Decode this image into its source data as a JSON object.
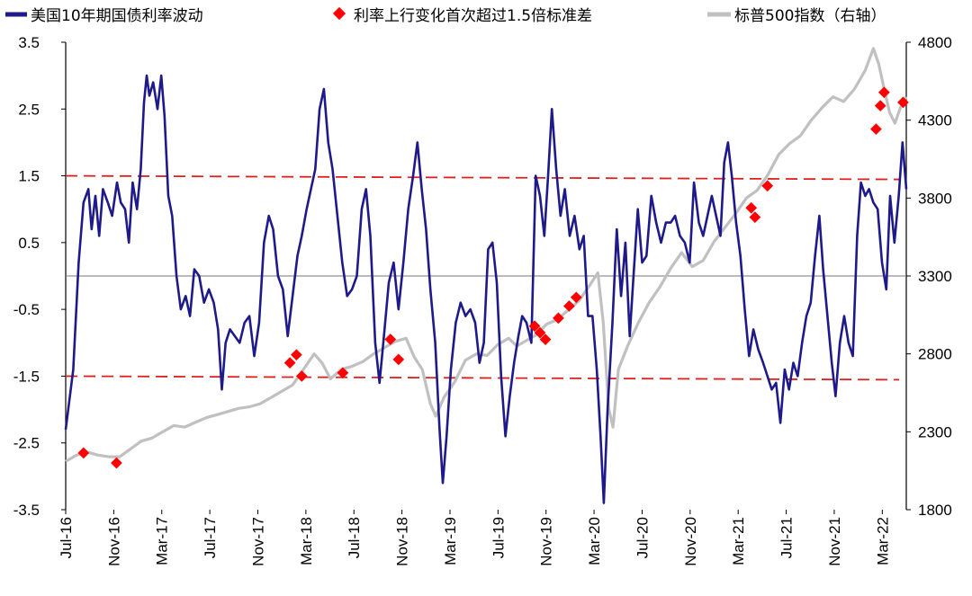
{
  "chart_data": {
    "type": "line",
    "title": "",
    "legend_position": "top",
    "grid": false,
    "x": {
      "ticks": [
        "Jul-16",
        "Nov-16",
        "Mar-17",
        "Jul-17",
        "Nov-17",
        "Mar-18",
        "Jul-18",
        "Nov-18",
        "Mar-19",
        "Jul-19",
        "Nov-19",
        "Mar-20",
        "Jul-20",
        "Nov-20",
        "Mar-21",
        "Jul-21",
        "Nov-21",
        "Mar-22"
      ]
    },
    "y_left": {
      "range": [
        -3.5,
        3.5
      ],
      "ticks": [
        "3.5",
        "2.5",
        "1.5",
        "0.5",
        "-0.5",
        "-1.5",
        "-2.5",
        "-3.5"
      ],
      "reference_lines": [
        1.5,
        -1.5,
        0
      ]
    },
    "y_right": {
      "range": [
        1800,
        4800
      ],
      "ticks": [
        "4800",
        "4300",
        "3800",
        "3300",
        "2800",
        "2300",
        "1800"
      ]
    },
    "colors": {
      "rate": "#1f1a8a",
      "spx": "#c0c0c0",
      "marker": "#ff0000",
      "ref": "#e0201a"
    },
    "series": [
      {
        "name": "美国10年期国债利率波动",
        "axis": "left",
        "style": "line",
        "points": [
          [
            0,
            -2.3
          ],
          [
            1.4,
            -1.4
          ],
          [
            2.4,
            0.2
          ],
          [
            3.3,
            1.1
          ],
          [
            4.2,
            1.3
          ],
          [
            4.8,
            0.7
          ],
          [
            5.5,
            1.2
          ],
          [
            6.2,
            0.6
          ],
          [
            6.9,
            1.3
          ],
          [
            7.8,
            1.1
          ],
          [
            8.6,
            0.9
          ],
          [
            9.5,
            1.4
          ],
          [
            10.2,
            1.1
          ],
          [
            11.0,
            1.0
          ],
          [
            11.7,
            0.5
          ],
          [
            12.4,
            1.4
          ],
          [
            13.2,
            1.0
          ],
          [
            13.9,
            1.6
          ],
          [
            14.5,
            2.6
          ],
          [
            15.0,
            3.0
          ],
          [
            15.5,
            2.7
          ],
          [
            16.2,
            2.9
          ],
          [
            17.0,
            2.5
          ],
          [
            17.7,
            3.0
          ],
          [
            18.3,
            2.4
          ],
          [
            19.0,
            1.2
          ],
          [
            19.7,
            0.9
          ],
          [
            20.5,
            0.0
          ],
          [
            21.3,
            -0.5
          ],
          [
            22.2,
            -0.3
          ],
          [
            23.0,
            -0.6
          ],
          [
            23.8,
            0.1
          ],
          [
            24.7,
            0.0
          ],
          [
            25.6,
            -0.4
          ],
          [
            26.5,
            -0.2
          ],
          [
            27.4,
            -0.4
          ],
          [
            28.2,
            -0.8
          ],
          [
            28.9,
            -1.7
          ],
          [
            29.6,
            -1.0
          ],
          [
            30.4,
            -0.8
          ],
          [
            31.3,
            -0.9
          ],
          [
            32.2,
            -1.0
          ],
          [
            33.1,
            -0.7
          ],
          [
            34.0,
            -0.6
          ],
          [
            34.9,
            -1.2
          ],
          [
            35.8,
            -0.7
          ],
          [
            36.7,
            0.5
          ],
          [
            37.6,
            0.9
          ],
          [
            38.4,
            0.7
          ],
          [
            39.3,
            0.0
          ],
          [
            40.2,
            -0.2
          ],
          [
            41.1,
            -0.9
          ],
          [
            42.0,
            -0.3
          ],
          [
            42.9,
            0.3
          ],
          [
            43.7,
            0.6
          ],
          [
            44.6,
            1.0
          ],
          [
            45.4,
            1.3
          ],
          [
            46.2,
            1.6
          ],
          [
            47.0,
            2.5
          ],
          [
            47.8,
            2.8
          ],
          [
            48.6,
            2.0
          ],
          [
            49.4,
            1.6
          ],
          [
            50.3,
            0.9
          ],
          [
            51.2,
            0.2
          ],
          [
            52.1,
            -0.3
          ],
          [
            53.0,
            -0.2
          ],
          [
            53.9,
            0.0
          ],
          [
            54.8,
            1.0
          ],
          [
            55.6,
            1.3
          ],
          [
            56.4,
            0.6
          ],
          [
            57.3,
            -1.0
          ],
          [
            58.1,
            -1.6
          ],
          [
            58.9,
            -0.9
          ],
          [
            59.8,
            -0.1
          ],
          [
            60.7,
            0.2
          ],
          [
            61.6,
            -0.5
          ],
          [
            62.5,
            0.2
          ],
          [
            63.4,
            1.0
          ],
          [
            64.3,
            1.5
          ],
          [
            65.1,
            2.0
          ],
          [
            65.9,
            1.3
          ],
          [
            66.7,
            0.7
          ],
          [
            67.5,
            -0.2
          ],
          [
            68.4,
            -1.0
          ],
          [
            69.2,
            -2.3
          ],
          [
            69.8,
            -3.1
          ],
          [
            70.5,
            -2.4
          ],
          [
            71.3,
            -1.4
          ],
          [
            72.2,
            -0.7
          ],
          [
            73.1,
            -0.4
          ],
          [
            74.0,
            -0.6
          ],
          [
            74.9,
            -0.5
          ],
          [
            75.8,
            -0.7
          ],
          [
            76.6,
            -1.3
          ],
          [
            77.4,
            -1.0
          ],
          [
            78.2,
            0.4
          ],
          [
            79.0,
            0.5
          ],
          [
            79.8,
            -0.1
          ],
          [
            80.6,
            -1.5
          ],
          [
            81.4,
            -2.4
          ],
          [
            82.2,
            -1.8
          ],
          [
            83.0,
            -1.3
          ],
          [
            83.8,
            -0.9
          ],
          [
            84.5,
            -0.6
          ],
          [
            85.3,
            -0.7
          ],
          [
            86.2,
            -1.0
          ],
          [
            87.0,
            1.5
          ],
          [
            87.8,
            1.2
          ],
          [
            88.6,
            0.6
          ],
          [
            89.3,
            1.5
          ],
          [
            90.0,
            2.5
          ],
          [
            90.8,
            1.6
          ],
          [
            91.6,
            0.9
          ],
          [
            92.4,
            1.3
          ],
          [
            93.3,
            0.6
          ],
          [
            94.2,
            0.9
          ],
          [
            95.1,
            0.4
          ],
          [
            95.9,
            0.6
          ],
          [
            96.7,
            -0.6
          ],
          [
            97.5,
            -0.6
          ],
          [
            98.3,
            -1.4
          ],
          [
            99.0,
            -2.4
          ],
          [
            99.6,
            -3.4
          ],
          [
            100.3,
            -2.0
          ],
          [
            101.2,
            -0.7
          ],
          [
            102.0,
            0.7
          ],
          [
            102.8,
            -0.3
          ],
          [
            103.6,
            0.5
          ],
          [
            104.4,
            -0.9
          ],
          [
            105.1,
            0.0
          ],
          [
            105.9,
            1.0
          ],
          [
            106.7,
            0.2
          ],
          [
            107.5,
            0.3
          ],
          [
            108.4,
            1.2
          ],
          [
            109.3,
            0.8
          ],
          [
            110.2,
            0.5
          ],
          [
            111.1,
            0.8
          ],
          [
            112.0,
            0.8
          ],
          [
            112.8,
            0.9
          ],
          [
            113.7,
            0.6
          ],
          [
            114.6,
            0.5
          ],
          [
            115.5,
            0.2
          ],
          [
            116.3,
            1.4
          ],
          [
            117.2,
            0.8
          ],
          [
            118.0,
            0.6
          ],
          [
            118.8,
            0.9
          ],
          [
            119.6,
            1.2
          ],
          [
            120.4,
            0.9
          ],
          [
            121.2,
            0.6
          ],
          [
            121.9,
            1.7
          ],
          [
            122.6,
            2.0
          ],
          [
            123.3,
            1.5
          ],
          [
            124.1,
            0.8
          ],
          [
            124.9,
            0.3
          ],
          [
            125.7,
            -0.5
          ],
          [
            126.5,
            -1.2
          ],
          [
            127.3,
            -0.8
          ],
          [
            128.2,
            -1.1
          ],
          [
            129.1,
            -1.3
          ],
          [
            129.9,
            -1.5
          ],
          [
            130.7,
            -1.7
          ],
          [
            131.5,
            -1.6
          ],
          [
            132.3,
            -2.2
          ],
          [
            133.1,
            -1.4
          ],
          [
            133.9,
            -1.7
          ],
          [
            134.7,
            -1.3
          ],
          [
            135.5,
            -1.5
          ],
          [
            136.3,
            -1.0
          ],
          [
            137.1,
            -0.6
          ],
          [
            137.9,
            -0.4
          ],
          [
            138.7,
            0.3
          ],
          [
            139.5,
            0.9
          ],
          [
            140.2,
            0.1
          ],
          [
            141.0,
            -0.6
          ],
          [
            141.8,
            -1.3
          ],
          [
            142.5,
            -1.8
          ],
          [
            143.3,
            -1.0
          ],
          [
            144.1,
            -0.6
          ],
          [
            144.9,
            -1.0
          ],
          [
            145.7,
            -1.2
          ],
          [
            146.5,
            0.6
          ],
          [
            147.2,
            1.4
          ],
          [
            148.0,
            1.2
          ],
          [
            148.7,
            1.3
          ],
          [
            149.5,
            1.1
          ],
          [
            150.3,
            1.0
          ],
          [
            151.1,
            0.2
          ],
          [
            151.9,
            -0.2
          ],
          [
            152.6,
            1.2
          ],
          [
            153.4,
            0.5
          ],
          [
            154.2,
            1.2
          ],
          [
            154.9,
            2.0
          ],
          [
            155.6,
            1.3
          ]
        ]
      },
      {
        "name": "利率上行变化首次超过1.5倍标准差",
        "axis": "left",
        "style": "diamond-marker",
        "points": [
          [
            3.3,
            -2.65
          ],
          [
            9.4,
            -2.8
          ],
          [
            41.5,
            -1.3
          ],
          [
            42.7,
            -1.18
          ],
          [
            43.7,
            -1.5
          ],
          [
            51.3,
            -1.45
          ],
          [
            60.1,
            -0.95
          ],
          [
            61.6,
            -1.25
          ],
          [
            86.8,
            -0.75
          ],
          [
            87.8,
            -0.85
          ],
          [
            88.8,
            -0.95
          ],
          [
            91.2,
            -0.63
          ],
          [
            93.2,
            -0.45
          ],
          [
            94.5,
            -0.32
          ],
          [
            126.9,
            1.02
          ],
          [
            127.6,
            0.88
          ],
          [
            129.9,
            1.35
          ],
          [
            150.0,
            2.2
          ],
          [
            150.8,
            2.55
          ],
          [
            151.5,
            2.75
          ],
          [
            155.0,
            2.6
          ]
        ]
      },
      {
        "name": "标普500指数（右轴）",
        "axis": "right",
        "style": "line",
        "points": [
          [
            0,
            2110
          ],
          [
            2,
            2150
          ],
          [
            4,
            2170
          ],
          [
            6,
            2150
          ],
          [
            8,
            2140
          ],
          [
            10,
            2140
          ],
          [
            12,
            2190
          ],
          [
            14,
            2240
          ],
          [
            16,
            2260
          ],
          [
            18,
            2300
          ],
          [
            20,
            2340
          ],
          [
            22,
            2330
          ],
          [
            24,
            2360
          ],
          [
            26,
            2390
          ],
          [
            28,
            2410
          ],
          [
            30,
            2430
          ],
          [
            32,
            2450
          ],
          [
            34,
            2460
          ],
          [
            36,
            2480
          ],
          [
            38,
            2520
          ],
          [
            40,
            2560
          ],
          [
            42,
            2600
          ],
          [
            44,
            2700
          ],
          [
            46,
            2800
          ],
          [
            47.5,
            2740
          ],
          [
            49,
            2640
          ],
          [
            51,
            2700
          ],
          [
            53,
            2720
          ],
          [
            55,
            2750
          ],
          [
            57,
            2800
          ],
          [
            59,
            2840
          ],
          [
            61,
            2880
          ],
          [
            63,
            2900
          ],
          [
            64.5,
            2780
          ],
          [
            66,
            2700
          ],
          [
            67.5,
            2480
          ],
          [
            68.5,
            2400
          ],
          [
            70,
            2520
          ],
          [
            72,
            2620
          ],
          [
            74,
            2760
          ],
          [
            76,
            2800
          ],
          [
            78,
            2790
          ],
          [
            80,
            2860
          ],
          [
            82,
            2900
          ],
          [
            83.5,
            2850
          ],
          [
            85,
            2880
          ],
          [
            87,
            2920
          ],
          [
            89,
            2990
          ],
          [
            91,
            3020
          ],
          [
            93,
            3080
          ],
          [
            95,
            3140
          ],
          [
            97,
            3240
          ],
          [
            98.5,
            3320
          ],
          [
            99.5,
            3000
          ],
          [
            100.5,
            2450
          ],
          [
            101.3,
            2330
          ],
          [
            102.3,
            2700
          ],
          [
            104,
            2850
          ],
          [
            106,
            3000
          ],
          [
            108,
            3130
          ],
          [
            110,
            3230
          ],
          [
            112,
            3350
          ],
          [
            114,
            3450
          ],
          [
            116,
            3360
          ],
          [
            118,
            3400
          ],
          [
            120,
            3520
          ],
          [
            122,
            3610
          ],
          [
            124,
            3700
          ],
          [
            126,
            3800
          ],
          [
            128,
            3850
          ],
          [
            130,
            3950
          ],
          [
            132,
            4080
          ],
          [
            134,
            4150
          ],
          [
            136,
            4200
          ],
          [
            138,
            4300
          ],
          [
            140,
            4380
          ],
          [
            142,
            4450
          ],
          [
            144,
            4420
          ],
          [
            146,
            4500
          ],
          [
            148,
            4620
          ],
          [
            149.5,
            4760
          ],
          [
            150.5,
            4660
          ],
          [
            151.5,
            4500
          ],
          [
            152.5,
            4350
          ],
          [
            153.5,
            4280
          ],
          [
            154.5,
            4380
          ],
          [
            155.6,
            4450
          ]
        ]
      }
    ]
  }
}
